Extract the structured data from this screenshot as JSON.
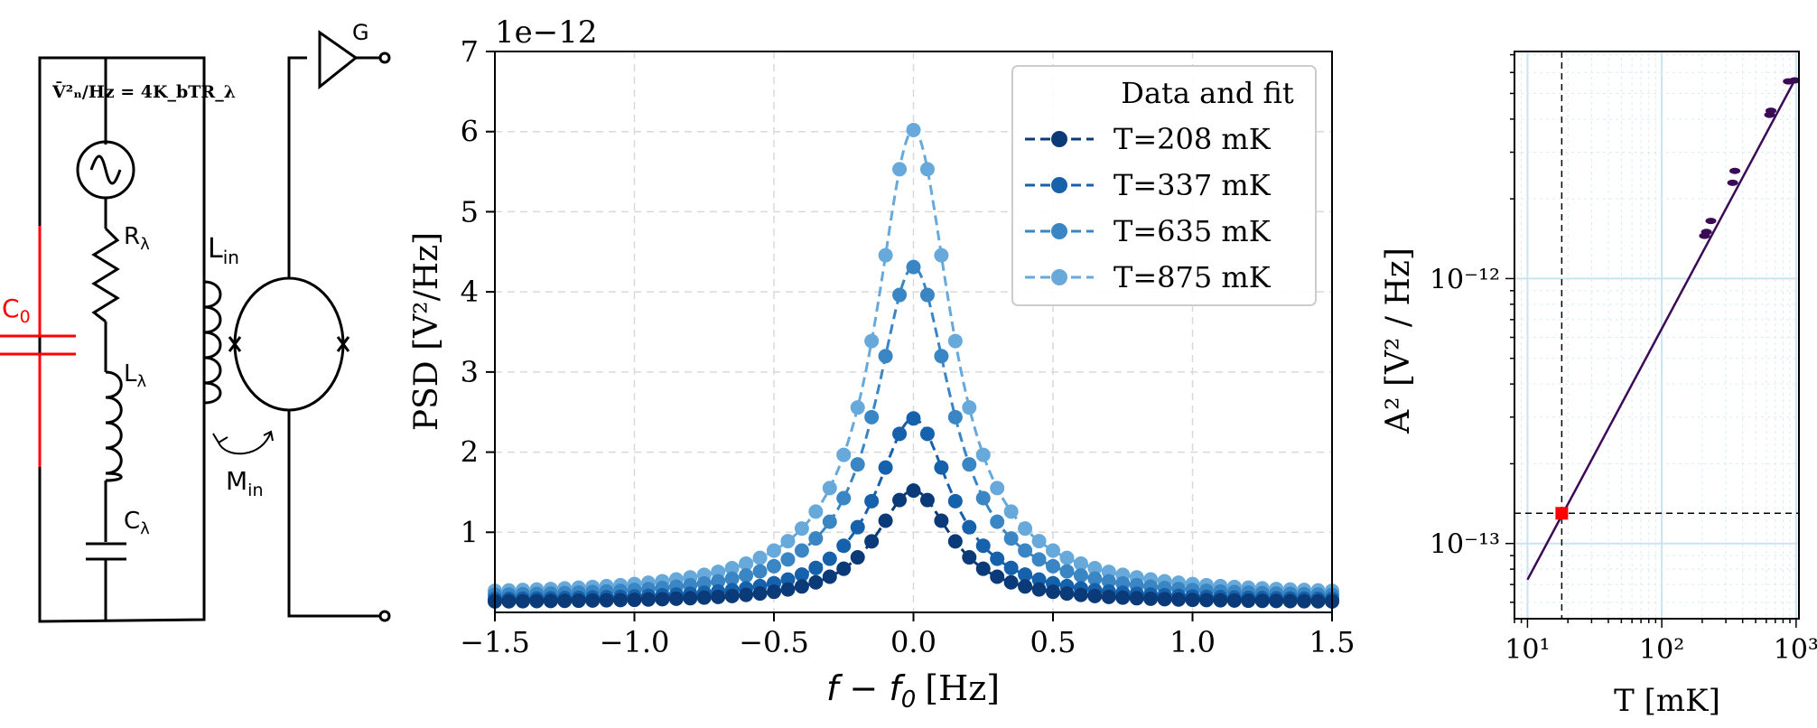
{
  "circuit": {
    "noise_equation": "V̄²ₙ/Hz = 4K_bTR_λ",
    "labels": {
      "c0": "C",
      "c0_sub": "0",
      "r": "R",
      "r_sub": "λ",
      "l": "L",
      "l_sub": "λ",
      "c": "C",
      "c_sub": "λ",
      "lin": "L",
      "lin_sub": "in",
      "min": "M",
      "min_sub": "in",
      "amp": "G"
    },
    "colors": {
      "wire": "#000000",
      "c0": "#ff0000"
    }
  },
  "chart_data": [
    {
      "type": "scatter",
      "xlabel": "f − f",
      "xlabel_sub": "0",
      "xlabel_unit": "[Hz]",
      "ylabel": "PSD [V²/Hz]",
      "offset_text": "1e−12",
      "xlim": [
        -1.5,
        1.5
      ],
      "ylim": [
        0,
        7
      ],
      "x_ticks": [
        -1.5,
        -1.0,
        -0.5,
        0.0,
        0.5,
        1.0,
        1.5
      ],
      "x_tick_labels": [
        "−1.5",
        "−1.0",
        "−0.5",
        "0.0",
        "0.5",
        "1.0",
        "1.5"
      ],
      "y_ticks": [
        1,
        2,
        3,
        4,
        5,
        6,
        7
      ],
      "y_tick_labels": [
        "1",
        "2",
        "3",
        "4",
        "5",
        "6",
        "7"
      ],
      "grid": true,
      "legend": {
        "title": "Data and fit",
        "placement": "top-right"
      },
      "model": "lorentzian",
      "series": [
        {
          "name": "T=208 mK",
          "color": "#0b3a79",
          "peak": 1.52,
          "baseline": 0.12,
          "hwhm": 0.165
        },
        {
          "name": "T=337 mK",
          "color": "#1561ab",
          "peak": 2.42,
          "baseline": 0.14,
          "hwhm": 0.165
        },
        {
          "name": "T=635 mK",
          "color": "#3a86c4",
          "peak": 4.31,
          "baseline": 0.17,
          "hwhm": 0.165
        },
        {
          "name": "T=875 mK",
          "color": "#66a9da",
          "peak": 6.02,
          "baseline": 0.2,
          "hwhm": 0.165
        }
      ],
      "sample_step": 0.05
    },
    {
      "type": "line",
      "xlabel": "T [mK]",
      "ylabel": "A² [V² / Hz]",
      "x_scale": "log",
      "y_scale": "log",
      "xlim": [
        8,
        1050
      ],
      "ylim": [
        5.2e-14,
        7.2e-12
      ],
      "x_ticks": [
        10,
        100,
        1000
      ],
      "x_tick_labels": [
        "10¹",
        "10²",
        "10³"
      ],
      "y_ticks": [
        1e-13,
        1e-12
      ],
      "y_tick_labels": [
        "10⁻¹³",
        "10⁻¹²"
      ],
      "grid": true,
      "line_color": "#3b0a57",
      "marker_color": "#3b0a57",
      "highlight_color": "#ff0000",
      "fit_line": {
        "x": [
          10,
          975
        ],
        "y": [
          7.3e-14,
          5.6e-12
        ]
      },
      "data_points": [
        {
          "x": 208,
          "y": 1.45e-12
        },
        {
          "x": 215,
          "y": 1.5e-12
        },
        {
          "x": 232,
          "y": 1.65e-12
        },
        {
          "x": 337,
          "y": 2.3e-12
        },
        {
          "x": 350,
          "y": 2.55e-12
        },
        {
          "x": 635,
          "y": 4.15e-12
        },
        {
          "x": 650,
          "y": 4.3e-12
        },
        {
          "x": 875,
          "y": 5.55e-12
        },
        {
          "x": 975,
          "y": 5.6e-12
        }
      ],
      "highlight_point": {
        "x": 18,
        "y": 1.3e-13
      },
      "reference_lines": {
        "x": 18,
        "y": 1.3e-13,
        "style": "dashed"
      }
    }
  ]
}
